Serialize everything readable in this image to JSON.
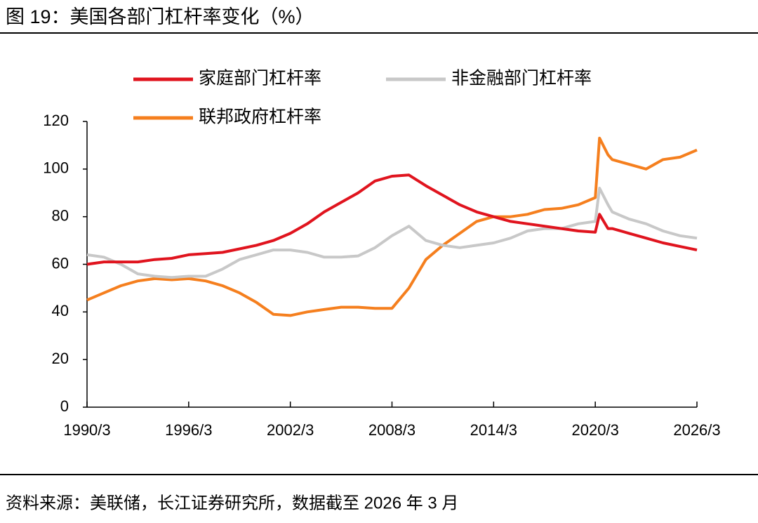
{
  "title": "图 19：美国各部门杠杆率变化（%）",
  "source": "资料来源：美联储，长江证券研究所，数据截至 2026 年 3 月",
  "chart_data": {
    "type": "line",
    "x": [
      "1990/3",
      "1991/3",
      "1992/3",
      "1993/3",
      "1994/3",
      "1995/3",
      "1996/3",
      "1997/3",
      "1998/3",
      "1999/3",
      "2000/3",
      "2001/3",
      "2002/3",
      "2003/3",
      "2004/3",
      "2005/3",
      "2006/3",
      "2007/3",
      "2008/3",
      "2009/3",
      "2010/3",
      "2011/3",
      "2012/3",
      "2013/3",
      "2014/3",
      "2015/3",
      "2016/3",
      "2017/3",
      "2018/3",
      "2019/3",
      "2020/3",
      "2020/6",
      "2020/12",
      "2021/3",
      "2022/3",
      "2023/3",
      "2024/3",
      "2025/3",
      "2026/3"
    ],
    "series": [
      {
        "name": "家庭部门杠杆率",
        "color": "#e0141e",
        "values": [
          60,
          61,
          61,
          61,
          62,
          62.5,
          64,
          64.5,
          65,
          66.5,
          68,
          70,
          73,
          77,
          82,
          86,
          90,
          95,
          97,
          97.5,
          93,
          89,
          85,
          82,
          80,
          78,
          77,
          76,
          75,
          74,
          73.5,
          81,
          75,
          75,
          73,
          71,
          69,
          67.5,
          66
        ]
      },
      {
        "name": "非金融部门杠杆率",
        "color": "#c8c8c8",
        "values": [
          64,
          63,
          60,
          56,
          55,
          54.5,
          55,
          55,
          58,
          62,
          64,
          66,
          66,
          65,
          63,
          63,
          63.5,
          67,
          72,
          76,
          70,
          68,
          67,
          68,
          69,
          71,
          74,
          75,
          75,
          77,
          78,
          92,
          85,
          82,
          79,
          77,
          74,
          72,
          71
        ]
      },
      {
        "name": "联邦政府杠杆率",
        "color": "#f57f1e",
        "values": [
          45,
          48,
          51,
          53,
          54,
          53.5,
          54,
          53,
          51,
          48,
          44,
          39,
          38.5,
          40,
          41,
          42,
          42,
          41.5,
          41.5,
          50,
          62,
          68,
          73,
          78,
          80,
          80,
          81,
          83,
          83.5,
          85,
          88,
          113,
          106,
          104,
          102,
          100,
          104,
          105,
          108
        ]
      }
    ],
    "xlim": [
      "1990/3",
      "2026/3"
    ],
    "xticks": [
      "1990/3",
      "1996/3",
      "2002/3",
      "2008/3",
      "2014/3",
      "2020/3",
      "2026/3"
    ],
    "ylim": [
      0,
      120
    ],
    "yticks": [
      0,
      20,
      40,
      60,
      80,
      100,
      120
    ]
  }
}
